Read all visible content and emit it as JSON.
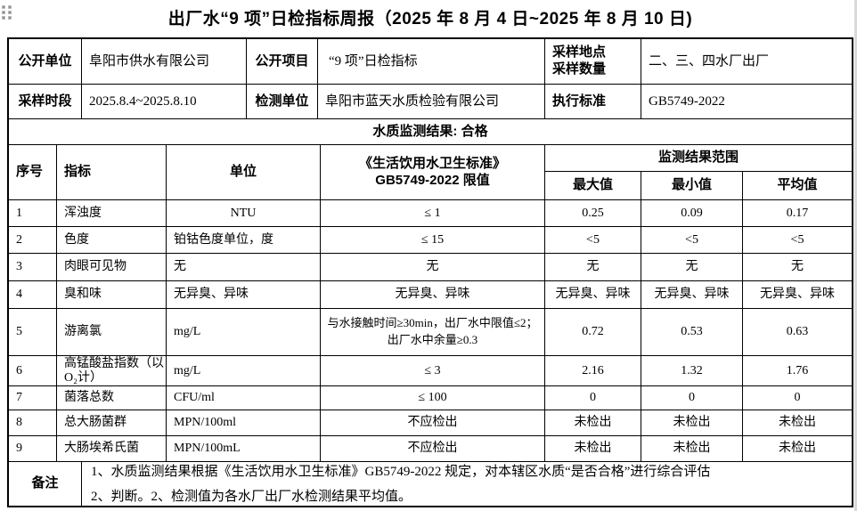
{
  "title": "出厂水“9 项”日检指标周报（2025 年 8 月 4 日~2025 年 8 月 10 日)",
  "info": {
    "publish_unit_label": "公开单位",
    "publish_unit_value": "阜阳市供水有限公司",
    "publish_item_label": "公开项目",
    "publish_item_value": "“9 项”日检指标",
    "sampling_site_label": "采样地点",
    "sampling_count_label": "采样数量",
    "sampling_site_value": "二、三、四水厂出厂",
    "sampling_period_label": "采样时段",
    "sampling_period_value": "2025.8.4~2025.8.10",
    "testing_unit_label": "检测单位",
    "testing_unit_value": "阜阳市蓝天水质检验有限公司",
    "standard_label": "执行标准",
    "standard_value": "GB5749-2022"
  },
  "result_line": "水质监测结果: 合格",
  "table": {
    "headers": {
      "no": "序号",
      "indicator": "指标",
      "unit": "单位",
      "limit_line1": "《生活饮用水卫生标准》",
      "limit_line2": "GB5749-2022 限值",
      "range": "监测结果范围",
      "max": "最大值",
      "min": "最小值",
      "avg": "平均值"
    },
    "rows": [
      {
        "no": "1",
        "indicator": "浑浊度",
        "unit": "NTU",
        "limit": "≤ 1",
        "max": "0.25",
        "min": "0.09",
        "avg": "0.17"
      },
      {
        "no": "2",
        "indicator": "色度",
        "unit": "铂钴色度单位，度",
        "limit": "≤ 15",
        "max": "<5",
        "min": "<5",
        "avg": "<5"
      },
      {
        "no": "3",
        "indicator": "肉眼可见物",
        "unit": "无",
        "limit": "无",
        "max": "无",
        "min": "无",
        "avg": "无"
      },
      {
        "no": "4",
        "indicator": "臭和味",
        "unit": "无异臭、异味",
        "limit": "无异臭、异味",
        "max": "无异臭、异味",
        "min": "无异臭、异味",
        "avg": "无异臭、异味"
      },
      {
        "no": "5",
        "indicator": "游离氯",
        "unit": "mg/L",
        "limit": "与水接触时间≥30min，出厂水中限值≤2；出厂水中余量≥0.3",
        "max": "0.72",
        "min": "0.53",
        "avg": "0.63"
      },
      {
        "no": "6",
        "indicator": "高锰酸盐指数（以O₂计）",
        "unit": "mg/L",
        "limit": "≤ 3",
        "max": "2.16",
        "min": "1.32",
        "avg": "1.76"
      },
      {
        "no": "7",
        "indicator": "菌落总数",
        "unit": "CFU/ml",
        "limit": "≤ 100",
        "max": "0",
        "min": "0",
        "avg": "0"
      },
      {
        "no": "8",
        "indicator": "总大肠菌群",
        "unit": "MPN/100ml",
        "limit": "不应检出",
        "max": "未检出",
        "min": "未检出",
        "avg": "未检出"
      },
      {
        "no": "9",
        "indicator": "大肠埃希氏菌",
        "unit": "MPN/100mL",
        "limit": "不应检出",
        "max": "未检出",
        "min": "未检出",
        "avg": "未检出"
      }
    ]
  },
  "notes": {
    "label": "备注",
    "line1": "1、水质监测结果根据《生活饮用水卫生标准》GB5749-2022 规定，对本辖区水质“是否合格”进行综合评估",
    "line2": "2、判断。2、检测值为各水厂出厂水检测结果平均值。"
  }
}
